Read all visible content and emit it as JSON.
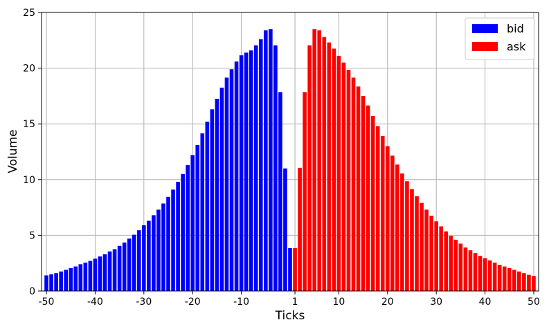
{
  "chart_data": {
    "type": "bar",
    "xlabel": "Ticks",
    "ylabel": "Volume",
    "xlim": [
      -51,
      51
    ],
    "ylim": [
      0,
      25
    ],
    "grid": true,
    "legend_position": "top-right",
    "x_ticks": [
      -50,
      -40,
      -30,
      -20,
      -10,
      1,
      10,
      20,
      30,
      40,
      50
    ],
    "x_tick_labels": [
      "-50",
      "-40",
      "-30",
      "-20",
      "-10",
      "1",
      "10",
      "20",
      "30",
      "40",
      "50"
    ],
    "y_ticks": [
      0,
      5,
      10,
      15,
      20,
      25
    ],
    "y_tick_labels": [
      "0",
      "5",
      "10",
      "15",
      "20",
      "25"
    ],
    "series": [
      {
        "name": "bid",
        "color": "#0000ff",
        "x": [
          -50,
          -49,
          -48,
          -47,
          -46,
          -45,
          -44,
          -43,
          -42,
          -41,
          -40,
          -39,
          -38,
          -37,
          -36,
          -35,
          -34,
          -33,
          -32,
          -31,
          -30,
          -29,
          -28,
          -27,
          -26,
          -25,
          -24,
          -23,
          -22,
          -21,
          -20,
          -19,
          -18,
          -17,
          -16,
          -15,
          -14,
          -13,
          -12,
          -11,
          -10,
          -9,
          -8,
          -7,
          -6,
          -5,
          -4,
          -3,
          -2,
          -1,
          0
        ],
        "values": [
          1.4,
          1.5,
          1.6,
          1.75,
          1.9,
          2.05,
          2.2,
          2.4,
          2.55,
          2.7,
          2.9,
          3.1,
          3.3,
          3.55,
          3.75,
          4.05,
          4.35,
          4.7,
          5.05,
          5.45,
          5.9,
          6.3,
          6.8,
          7.3,
          7.85,
          8.45,
          9.1,
          9.8,
          10.5,
          11.3,
          12.2,
          13.1,
          14.15,
          15.2,
          16.3,
          17.25,
          18.25,
          19.15,
          19.9,
          20.6,
          21.15,
          21.4,
          21.6,
          22.05,
          22.6,
          23.4,
          23.5,
          22.05,
          17.85,
          11.0,
          3.85
        ]
      },
      {
        "name": "ask",
        "color": "#ff0000",
        "x": [
          1,
          2,
          3,
          4,
          5,
          6,
          7,
          8,
          9,
          10,
          11,
          12,
          13,
          14,
          15,
          16,
          17,
          18,
          19,
          20,
          21,
          22,
          23,
          24,
          25,
          26,
          27,
          28,
          29,
          30,
          31,
          32,
          33,
          34,
          35,
          36,
          37,
          38,
          39,
          40,
          41,
          42,
          43,
          44,
          45,
          46,
          47,
          48,
          49,
          50
        ],
        "values": [
          3.85,
          11.05,
          17.85,
          22.05,
          23.5,
          23.4,
          22.8,
          22.3,
          21.75,
          21.1,
          20.5,
          19.85,
          19.15,
          18.35,
          17.5,
          16.65,
          15.7,
          14.8,
          13.9,
          13.0,
          12.15,
          11.35,
          10.55,
          9.85,
          9.15,
          8.5,
          7.9,
          7.3,
          6.75,
          6.25,
          5.8,
          5.35,
          4.95,
          4.6,
          4.25,
          3.9,
          3.65,
          3.4,
          3.15,
          2.95,
          2.75,
          2.55,
          2.35,
          2.2,
          2.05,
          1.9,
          1.75,
          1.6,
          1.45,
          1.35
        ]
      }
    ]
  }
}
